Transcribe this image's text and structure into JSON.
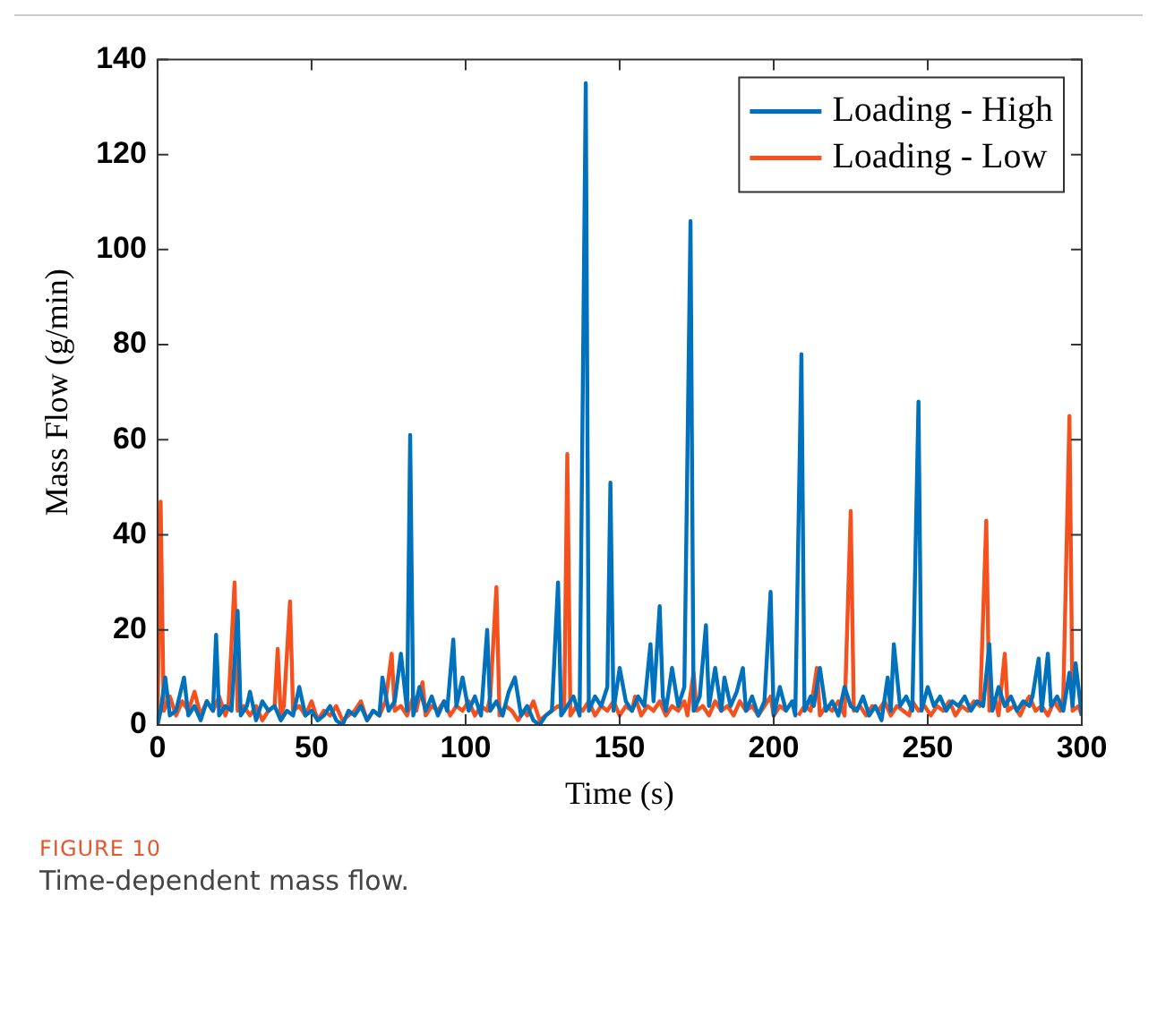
{
  "chart_data": {
    "type": "line",
    "xlabel": "Time (s)",
    "ylabel": "Mass Flow (g/min)",
    "annotations": [
      "FIGURE 10",
      "Time-dependent mass flow."
    ],
    "xlim": [
      0,
      300
    ],
    "xticks": [
      0,
      50,
      100,
      150,
      200,
      250,
      300
    ],
    "ylim": [
      0,
      140
    ],
    "yticks": [
      0,
      20,
      40,
      60,
      80,
      100,
      120,
      140
    ],
    "grid": false,
    "legend": "top right",
    "series": [
      {
        "name": "Loading - High",
        "color": "#0072bd",
        "x": [
          0,
          1,
          2.5,
          4,
          6,
          8.6,
          10,
          12,
          14,
          16,
          18,
          19,
          20,
          22,
          24,
          26,
          27,
          29,
          30,
          32,
          34,
          36,
          38,
          40,
          42,
          44,
          46,
          48,
          50,
          52,
          54,
          56,
          58,
          60,
          62,
          64,
          66,
          68,
          70,
          72,
          73,
          75,
          77,
          79,
          81,
          82,
          83,
          85,
          87,
          89,
          91,
          93,
          94,
          96,
          97,
          99,
          101,
          103,
          105,
          107,
          108,
          110,
          112,
          114,
          116,
          118,
          120,
          122,
          124,
          126,
          128,
          130,
          131,
          133,
          135,
          137,
          139,
          140,
          142,
          144,
          146,
          147,
          148,
          150,
          152,
          154,
          156,
          158,
          160,
          161,
          163,
          164,
          165,
          167,
          169,
          171,
          173,
          174,
          176,
          178,
          179,
          181,
          183,
          184,
          186,
          188,
          190,
          191,
          193,
          195,
          197,
          199,
          200,
          202,
          204,
          206,
          207,
          209,
          210,
          212,
          213,
          215,
          217,
          219,
          221,
          223,
          225,
          227,
          229,
          231,
          233,
          235,
          237,
          238,
          239,
          241,
          243,
          245,
          247,
          248,
          250,
          252,
          254,
          256,
          258,
          260,
          262,
          264,
          266,
          268,
          270,
          271,
          273,
          275,
          277,
          279,
          281,
          283,
          284,
          286,
          287,
          289,
          290,
          292,
          294,
          296,
          297,
          298,
          300
        ],
        "values": [
          0,
          3,
          10,
          2,
          3,
          10,
          2,
          4,
          1,
          5,
          3,
          19,
          2,
          4,
          3,
          24,
          2,
          4,
          7,
          1,
          5,
          3,
          4,
          1,
          3,
          2,
          8,
          2,
          3,
          1,
          2,
          4,
          1,
          0,
          3,
          2,
          4,
          1,
          3,
          2,
          10,
          3,
          5,
          15,
          3,
          61,
          2,
          8,
          3,
          6,
          2,
          5,
          3,
          18,
          4,
          10,
          3,
          6,
          2,
          20,
          3,
          5,
          2,
          7,
          10,
          2,
          4,
          1,
          0,
          2,
          3,
          30,
          2,
          4,
          6,
          2,
          135,
          3,
          6,
          4,
          8,
          51,
          3,
          12,
          5,
          3,
          6,
          4,
          17,
          5,
          25,
          6,
          3,
          12,
          4,
          8,
          106,
          3,
          6,
          21,
          4,
          12,
          3,
          10,
          4,
          7,
          12,
          3,
          6,
          2,
          5,
          28,
          2,
          8,
          3,
          5,
          2,
          78,
          3,
          6,
          4,
          12,
          3,
          5,
          2,
          8,
          4,
          3,
          6,
          2,
          4,
          1,
          10,
          3,
          17,
          4,
          6,
          3,
          68,
          3,
          8,
          4,
          6,
          3,
          5,
          4,
          6,
          3,
          5,
          4,
          17,
          3,
          8,
          4,
          6,
          3,
          5,
          4,
          6,
          14,
          3,
          15,
          4,
          6,
          3,
          11,
          4,
          13,
          2
        ]
      },
      {
        "name": "Loading - Low",
        "color": "#f4511e",
        "x": [
          0,
          1,
          2,
          4,
          6,
          8,
          10,
          12,
          14,
          16,
          18,
          20,
          22,
          23,
          25,
          26,
          28,
          30,
          32,
          34,
          36,
          38,
          39,
          40,
          41,
          43,
          44,
          46,
          48,
          50,
          52,
          54,
          56,
          58,
          60,
          62,
          64,
          66,
          68,
          70,
          72,
          74,
          76,
          77,
          79,
          81,
          83,
          84,
          86,
          87,
          89,
          91,
          93,
          95,
          97,
          99,
          101,
          103,
          105,
          107,
          108,
          110,
          111,
          113,
          115,
          117,
          119,
          120,
          122,
          124,
          126,
          128,
          130,
          132,
          133,
          134,
          136,
          138,
          140,
          142,
          144,
          146,
          148,
          150,
          152,
          154,
          155,
          157,
          159,
          161,
          163,
          165,
          167,
          169,
          171,
          172,
          174,
          175,
          177,
          179,
          181,
          183,
          185,
          187,
          189,
          191,
          193,
          195,
          197,
          199,
          200,
          202,
          204,
          206,
          208,
          210,
          212,
          214,
          215,
          217,
          219,
          221,
          223,
          225,
          226,
          228,
          230,
          232,
          234,
          236,
          238,
          240,
          242,
          244,
          245,
          247,
          249,
          251,
          253,
          255,
          257,
          259,
          261,
          263,
          265,
          267,
          269,
          270,
          272,
          273,
          275,
          276,
          278,
          280,
          282,
          283,
          285,
          287,
          289,
          291,
          293,
          294,
          296,
          297,
          299,
          300
        ],
        "values": [
          0,
          47,
          3,
          6,
          2,
          5,
          3,
          7,
          2,
          5,
          3,
          6,
          2,
          4,
          30,
          3,
          4,
          2,
          4,
          1,
          3,
          4,
          16,
          2,
          4,
          26,
          3,
          4,
          2,
          5,
          1,
          3,
          2,
          4,
          1,
          2,
          3,
          5,
          1,
          3,
          2,
          5,
          15,
          3,
          4,
          2,
          6,
          3,
          9,
          2,
          4,
          3,
          5,
          2,
          4,
          3,
          5,
          2,
          4,
          3,
          6,
          29,
          2,
          4,
          3,
          1,
          3,
          2,
          5,
          1,
          2,
          3,
          4,
          3,
          57,
          2,
          4,
          3,
          5,
          2,
          4,
          3,
          5,
          2,
          4,
          3,
          6,
          2,
          4,
          3,
          5,
          2,
          4,
          3,
          5,
          2,
          11,
          3,
          4,
          2,
          5,
          3,
          4,
          2,
          5,
          3,
          4,
          2,
          4,
          6,
          2,
          4,
          3,
          null,
          2,
          4,
          3,
          12,
          2,
          4,
          3,
          5,
          2,
          45,
          3,
          4,
          2,
          4,
          3,
          5,
          2,
          4,
          3,
          2,
          5,
          3,
          4,
          2,
          4,
          3,
          5,
          2,
          4,
          3,
          5,
          4,
          43,
          3,
          5,
          2,
          15,
          3,
          4,
          2,
          5,
          6,
          3,
          4,
          2,
          5,
          3,
          6,
          65,
          3,
          4,
          2
        ]
      }
    ]
  }
}
